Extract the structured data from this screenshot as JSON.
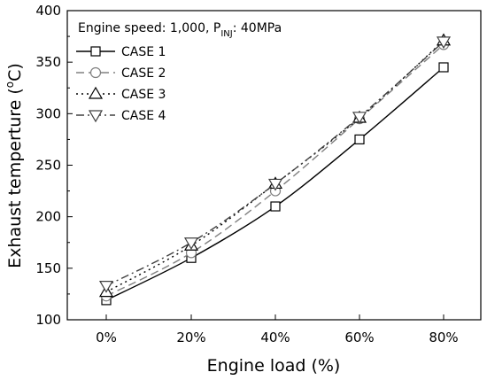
{
  "chart_data": {
    "type": "line",
    "xlabel": "Engine load (%)",
    "ylabel": "Exhaust temperture (°C)",
    "categories": [
      "0%",
      "20%",
      "40%",
      "60%",
      "80%"
    ],
    "ylim": [
      100,
      400
    ],
    "yticks": [
      100,
      150,
      200,
      250,
      300,
      350,
      400
    ],
    "annotation": "Engine speed: 1,000, P_INJ: 40MPa",
    "annotation_parts": {
      "prefix": "Engine speed: 1,000, P",
      "subscript": "INJ",
      "suffix": ": 40MPa"
    },
    "ylabel_parts": {
      "prefix": "Exhaust temperture (",
      "superscript": "o",
      "suffix": "C)"
    },
    "legend_position": "top-left",
    "grid": false,
    "series": [
      {
        "name": "CASE 1",
        "values": [
          119,
          160,
          210,
          275,
          345
        ],
        "marker": "square",
        "dash": "solid",
        "color": "#000000"
      },
      {
        "name": "CASE 2",
        "values": [
          123,
          165,
          225,
          295,
          367
        ],
        "marker": "circle",
        "dash": "dash",
        "color": "#808080"
      },
      {
        "name": "CASE 3",
        "values": [
          127,
          172,
          232,
          296,
          371
        ],
        "marker": "triangle-up",
        "dash": "dot",
        "color": "#000000"
      },
      {
        "name": "CASE 4",
        "values": [
          133,
          175,
          232,
          297,
          370
        ],
        "marker": "triangle-down",
        "dash": "dashdot",
        "color": "#404040"
      }
    ]
  }
}
